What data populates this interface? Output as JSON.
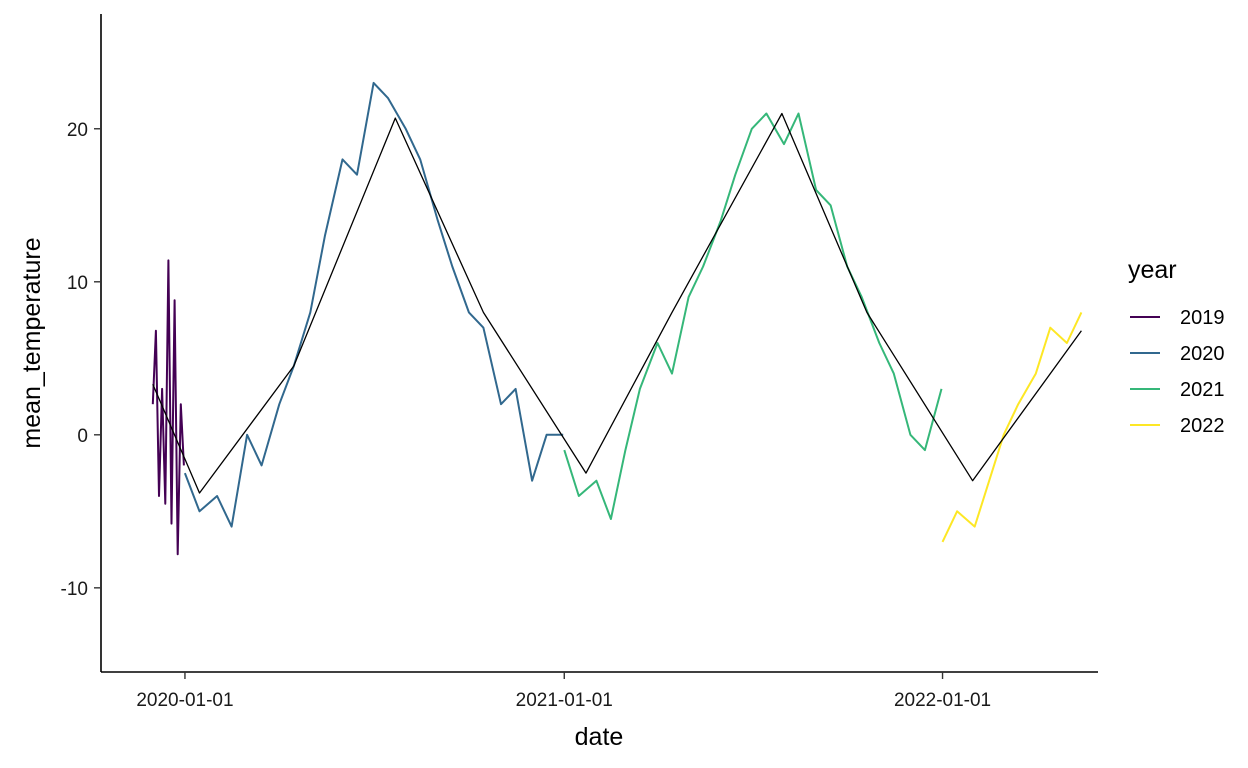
{
  "chart_data": {
    "type": "line",
    "title": "",
    "xlabel": "date",
    "ylabel": "mean_temperature",
    "x_tick_labels": [
      "2020-01-01",
      "2021-01-01",
      "2022-01-01"
    ],
    "x_ticks": [
      "2020-01-01",
      "2021-01-01",
      "2022-01-01"
    ],
    "y_ticks": [
      -10,
      0,
      10,
      20
    ],
    "y_tick_labels": [
      "-10",
      "0",
      "10",
      "20"
    ],
    "xlim": [
      "2019-10-12",
      "2022-05-31"
    ],
    "ylim": [
      -15.5,
      27.5
    ],
    "grid": false,
    "legend": {
      "title": "year",
      "position": "right"
    },
    "series": [
      {
        "name": "2019",
        "color": "#440154",
        "x": [
          "2019-12-01",
          "2019-12-04",
          "2019-12-07",
          "2019-12-10",
          "2019-12-13",
          "2019-12-16",
          "2019-12-19",
          "2019-12-22",
          "2019-12-25",
          "2019-12-28",
          "2019-12-31"
        ],
        "y": [
          2,
          6.8,
          -4,
          3,
          -4.5,
          11.4,
          -5.8,
          8.8,
          -7.8,
          2,
          -2
        ]
      },
      {
        "name": "2020",
        "color": "#31688e",
        "x": [
          "2020-01-01",
          "2020-01-15",
          "2020-02-01",
          "2020-02-15",
          "2020-03-01",
          "2020-03-15",
          "2020-04-01",
          "2020-04-15",
          "2020-05-01",
          "2020-05-15",
          "2020-06-01",
          "2020-06-15",
          "2020-07-01",
          "2020-07-15",
          "2020-08-01",
          "2020-08-15",
          "2020-09-01",
          "2020-09-15",
          "2020-10-01",
          "2020-10-15",
          "2020-11-01",
          "2020-11-15",
          "2020-12-01",
          "2020-12-15",
          "2020-12-31"
        ],
        "y": [
          -2.5,
          -5,
          -4,
          -6,
          0,
          -2,
          2,
          4.5,
          8,
          13,
          18,
          17,
          23,
          22,
          20,
          18,
          14,
          11,
          8,
          7,
          2,
          3,
          -3,
          0,
          0
        ]
      },
      {
        "name": "2021",
        "color": "#35b779",
        "x": [
          "2021-01-01",
          "2021-01-15",
          "2021-02-01",
          "2021-02-15",
          "2021-03-01",
          "2021-03-15",
          "2021-04-01",
          "2021-04-15",
          "2021-05-01",
          "2021-05-15",
          "2021-06-01",
          "2021-06-15",
          "2021-07-01",
          "2021-07-15",
          "2021-08-01",
          "2021-08-15",
          "2021-09-01",
          "2021-09-15",
          "2021-10-01",
          "2021-10-15",
          "2021-11-01",
          "2021-11-15",
          "2021-12-01",
          "2021-12-15",
          "2021-12-31"
        ],
        "y": [
          -1,
          -4,
          -3,
          -5.5,
          -1,
          3,
          6,
          4,
          9,
          11,
          14,
          17,
          20,
          21,
          19,
          21,
          16,
          15,
          11,
          9,
          6,
          4,
          0,
          -1,
          3
        ]
      },
      {
        "name": "2022",
        "color": "#fde725",
        "x": [
          "2022-01-01",
          "2022-01-15",
          "2022-02-01",
          "2022-02-15",
          "2022-03-01",
          "2022-03-15",
          "2022-04-01",
          "2022-04-15",
          "2022-05-01",
          "2022-05-15"
        ],
        "y": [
          -7,
          -5,
          -6,
          -3,
          0,
          2,
          4,
          7,
          6,
          8
        ]
      },
      {
        "name": "",
        "color": "#000000",
        "x": [
          "2019-12-01",
          "2020-01-15",
          "2020-04-15",
          "2020-07-22",
          "2020-10-15",
          "2021-01-22",
          "2021-04-15",
          "2021-07-30",
          "2021-10-20",
          "2022-01-30",
          "2022-05-15"
        ],
        "y": [
          3.3,
          -3.8,
          4.5,
          20.7,
          8.0,
          -2.5,
          8.0,
          21.0,
          8.0,
          -3.0,
          6.8
        ]
      }
    ]
  }
}
